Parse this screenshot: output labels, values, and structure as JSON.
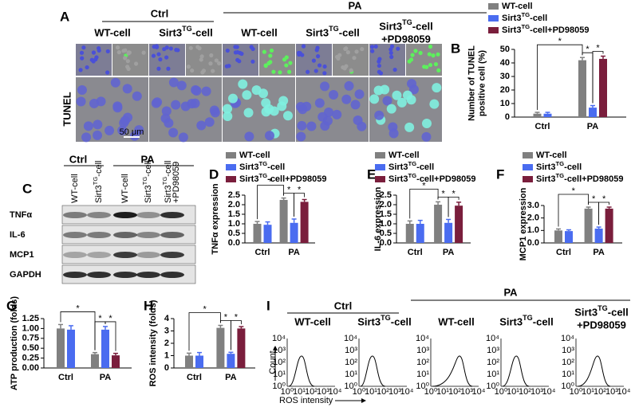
{
  "panel_a": {
    "label": "A",
    "groups": [
      "Ctrl",
      "PA"
    ],
    "columns": [
      [
        "WT-cell"
      ],
      [
        "Sirt3TG-cell"
      ],
      [
        "WT-cell"
      ],
      [
        "Sirt3TG-cell"
      ],
      [
        "Sirt3TG-cell",
        "+PD98059"
      ]
    ],
    "row_label": "TUNEL",
    "scale_bar": "50 μm"
  },
  "panel_c": {
    "label": "C",
    "groups": [
      "Ctrl",
      "PA"
    ],
    "lanes": [
      [
        "WT-cell"
      ],
      [
        "Sirt3TG-cell"
      ],
      [
        "WT-cell"
      ],
      [
        "Sirt3TG-cell"
      ],
      [
        "Sirt3TG-cell",
        "+PD98059"
      ]
    ],
    "rows": [
      "TNFα",
      "IL-6",
      "MCP1",
      "GAPDH"
    ]
  },
  "panel_i": {
    "label": "I",
    "groups": [
      "Ctrl",
      "PA"
    ],
    "columns": [
      [
        "WT-cell"
      ],
      [
        "Sirt3TG-cell"
      ],
      [
        "WT-cell"
      ],
      [
        "Sirt3TG-cell"
      ],
      [
        "Sirt3TG-cell",
        "+PD98059"
      ]
    ],
    "y_label": "Count",
    "x_label": "ROS intensity",
    "ticks": [
      "10⁰",
      "10¹",
      "10²",
      "10³",
      "10⁴"
    ]
  },
  "chart_data": [
    {
      "type": "bar",
      "label": "B",
      "ylabel": [
        "Number of TUNEL",
        "positive cell (%)"
      ],
      "categories": [
        "Ctrl",
        "PA"
      ],
      "legend": true,
      "series": [
        {
          "name": "WT-cell",
          "color": "#808080",
          "values": [
            2.5,
            42
          ],
          "errors": [
            1,
            2
          ]
        },
        {
          "name": "Sirt3TG-cell",
          "color": "#4a6cf0",
          "values": [
            2.5,
            7
          ],
          "errors": [
            1,
            1.5
          ]
        },
        {
          "name": "Sirt3TG-cell+PD98059",
          "color": "#7a1e3c",
          "values": [
            null,
            43
          ],
          "errors": [
            null,
            2
          ]
        }
      ],
      "ylim": [
        0,
        50
      ],
      "yticks": [
        0,
        10,
        20,
        30,
        40,
        50
      ],
      "annotations": [
        "*",
        "*",
        "*"
      ]
    },
    {
      "type": "bar",
      "label": "D",
      "ylabel": [
        "TNFα expression"
      ],
      "categories": [
        "Ctrl",
        "PA"
      ],
      "legend": true,
      "series": [
        {
          "name": "WT-cell",
          "color": "#808080",
          "values": [
            1.0,
            2.25
          ],
          "errors": [
            0.12,
            0.1
          ]
        },
        {
          "name": "Sirt3TG-cell",
          "color": "#4a6cf0",
          "values": [
            0.95,
            1.05
          ],
          "errors": [
            0.15,
            0.2
          ]
        },
        {
          "name": "Sirt3TG-cell+PD98059",
          "color": "#7a1e3c",
          "values": [
            null,
            2.15
          ],
          "errors": [
            null,
            0.12
          ]
        }
      ],
      "ylim": [
        0,
        2.5
      ],
      "yticks": [
        {
          "value": 0,
          "label": "0.0"
        },
        0.5,
        {
          "value": 1,
          "label": "1.0"
        },
        1.5,
        {
          "value": 2,
          "label": "2.0"
        },
        2.5
      ],
      "annotations": [
        "*",
        "*",
        "*"
      ]
    },
    {
      "type": "bar",
      "label": "E",
      "ylabel": [
        "IL-6 expression"
      ],
      "categories": [
        "Ctrl",
        "PA"
      ],
      "legend": true,
      "series": [
        {
          "name": "WT-cell",
          "color": "#808080",
          "values": [
            1.0,
            2.0
          ],
          "errors": [
            0.15,
            0.15
          ]
        },
        {
          "name": "Sirt3TG-cell",
          "color": "#4a6cf0",
          "values": [
            1.0,
            1.05
          ],
          "errors": [
            0.18,
            0.18
          ]
        },
        {
          "name": "Sirt3TG-cell+PD98059",
          "color": "#7a1e3c",
          "values": [
            null,
            1.95
          ],
          "errors": [
            null,
            0.18
          ]
        }
      ],
      "ylim": [
        0,
        2.5
      ],
      "yticks": [
        {
          "value": 0,
          "label": "0.0"
        },
        0.5,
        {
          "value": 1,
          "label": "1.0"
        },
        1.5,
        {
          "value": 2,
          "label": "2.0"
        },
        2.5
      ],
      "annotations": [
        "*",
        "*",
        "*"
      ]
    },
    {
      "type": "bar",
      "label": "F",
      "ylabel": [
        "MCP1 expression"
      ],
      "categories": [
        "Ctrl",
        "PA"
      ],
      "legend": true,
      "series": [
        {
          "name": "WT-cell",
          "color": "#808080",
          "values": [
            1.0,
            2.75
          ],
          "errors": [
            0.12,
            0.12
          ]
        },
        {
          "name": "Sirt3TG-cell",
          "color": "#4a6cf0",
          "values": [
            0.95,
            1.15
          ],
          "errors": [
            0.1,
            0.12
          ]
        },
        {
          "name": "Sirt3TG-cell+PD98059",
          "color": "#7a1e3c",
          "values": [
            null,
            2.75
          ],
          "errors": [
            null,
            0.12
          ]
        }
      ],
      "ylim": [
        0,
        3
      ],
      "yticks": [
        {
          "value": 0,
          "label": "0.0"
        },
        {
          "value": 1,
          "label": "1.0"
        },
        {
          "value": 2,
          "label": "2.0"
        },
        {
          "value": 3,
          "label": "3.0"
        }
      ],
      "annotations": [
        "*",
        "*",
        "*"
      ]
    },
    {
      "type": "bar",
      "label": "G",
      "ylabel": [
        "ATP production (folds)"
      ],
      "categories": [
        "Ctrl",
        "PA"
      ],
      "legend": false,
      "series": [
        {
          "color": "#808080",
          "values": [
            1.0,
            0.35
          ],
          "errors": [
            0.1,
            0.04
          ]
        },
        {
          "color": "#4a6cf0",
          "values": [
            0.97,
            0.97
          ],
          "errors": [
            0.1,
            0.08
          ]
        },
        {
          "color": "#7a1e3c",
          "values": [
            null,
            0.32
          ],
          "errors": [
            null,
            0.05
          ]
        }
      ],
      "ylim": [
        0,
        1.25
      ],
      "yticks": [
        {
          "value": 0,
          "label": "0.00"
        },
        0.25,
        {
          "value": 0.5,
          "label": "0.50"
        },
        0.75,
        {
          "value": 1,
          "label": "1.00"
        },
        1.25
      ],
      "annotations": [
        "*",
        "*",
        "*"
      ]
    },
    {
      "type": "bar",
      "label": "H",
      "ylabel": [
        "ROS intensity (folds)"
      ],
      "categories": [
        "Ctrl",
        "PA"
      ],
      "legend": false,
      "series": [
        {
          "color": "#808080",
          "values": [
            1.0,
            3.25
          ],
          "errors": [
            0.2,
            0.2
          ]
        },
        {
          "color": "#4a6cf0",
          "values": [
            1.0,
            1.15
          ],
          "errors": [
            0.25,
            0.12
          ]
        },
        {
          "color": "#7a1e3c",
          "values": [
            null,
            3.2
          ],
          "errors": [
            null,
            0.15
          ]
        }
      ],
      "ylim": [
        0,
        4
      ],
      "yticks": [
        0,
        1,
        2,
        3,
        4
      ],
      "annotations": [
        "*",
        "*",
        "*"
      ]
    }
  ]
}
